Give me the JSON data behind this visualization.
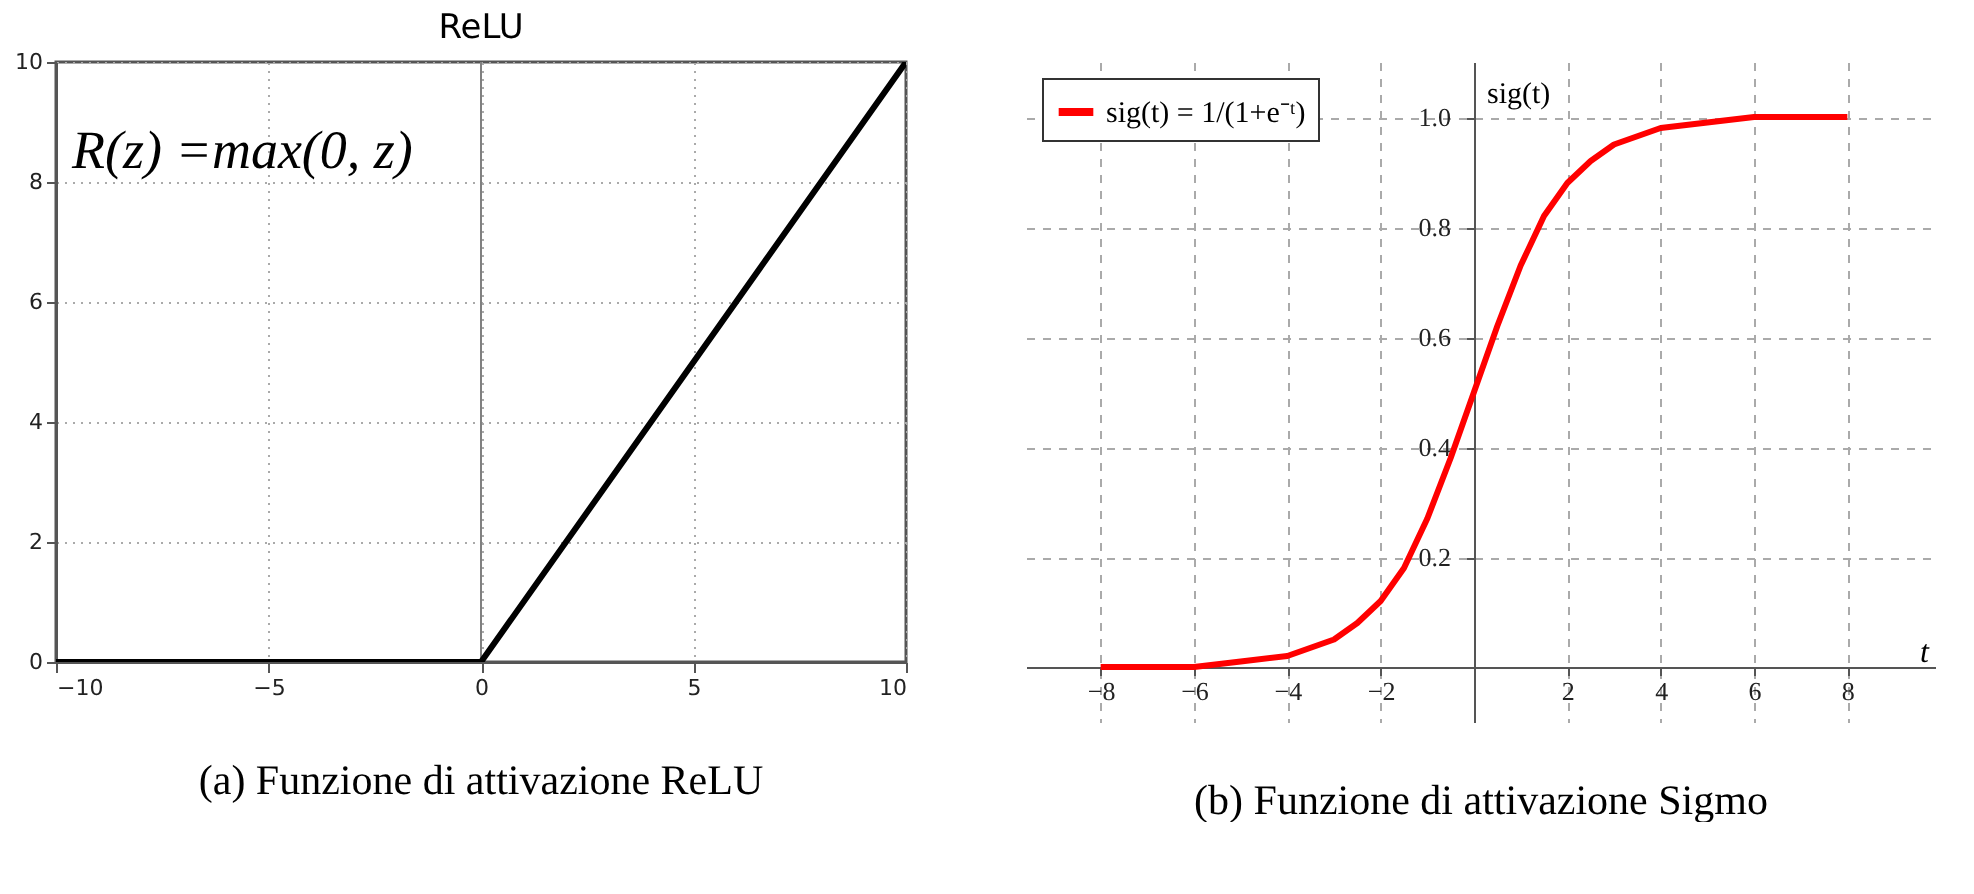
{
  "chart_data": [
    {
      "type": "line",
      "title": "ReLU",
      "x": [
        -10,
        0,
        10
      ],
      "series": [
        {
          "color": "#000000",
          "values": [
            0,
            0,
            10
          ]
        }
      ],
      "xlim": [
        -10,
        10
      ],
      "ylim": [
        0,
        10
      ],
      "xticks": [
        -10,
        -5,
        0,
        5,
        10
      ],
      "yticks": [
        0,
        2,
        4,
        6,
        8,
        10
      ],
      "grid": true,
      "ref_lines": [
        {
          "axis": "x",
          "value": 0,
          "color": "#808080"
        }
      ],
      "annotations": [
        "R(z) =max(0,  z)",
        "(a) Funzione di attivazione ReLU"
      ]
    },
    {
      "type": "line",
      "xlabel": "t",
      "ylabel": "sig(t)",
      "x": [
        -8,
        -7,
        -6,
        -5,
        -4,
        -3,
        -2.5,
        -2,
        -1.5,
        -1,
        -0.5,
        0,
        0.5,
        1,
        1.5,
        2,
        2.5,
        3,
        4,
        5,
        6,
        7,
        8
      ],
      "series": [
        {
          "name": "sig(t) = 1/(1+e⁻ᵗ)",
          "color": "#ff0000",
          "values": [
            0.0,
            0.0,
            0.0,
            0.01,
            0.02,
            0.05,
            0.08,
            0.12,
            0.18,
            0.27,
            0.38,
            0.5,
            0.62,
            0.73,
            0.82,
            0.88,
            0.92,
            0.95,
            0.98,
            0.99,
            1.0,
            1.0,
            1.0
          ]
        }
      ],
      "xlim": [
        -9.6,
        9.9
      ],
      "ylim": [
        -0.1,
        1.1
      ],
      "xticks": [
        -8,
        -6,
        -4,
        -2,
        2,
        4,
        6,
        8
      ],
      "yticks": [
        0.2,
        0.4,
        0.6,
        0.8,
        {
          "value": 1.0,
          "label": "1.0"
        }
      ],
      "grid": true,
      "legend": "top left",
      "annotations": [
        "(b) Funzione di attivazione Sigmo"
      ]
    }
  ]
}
